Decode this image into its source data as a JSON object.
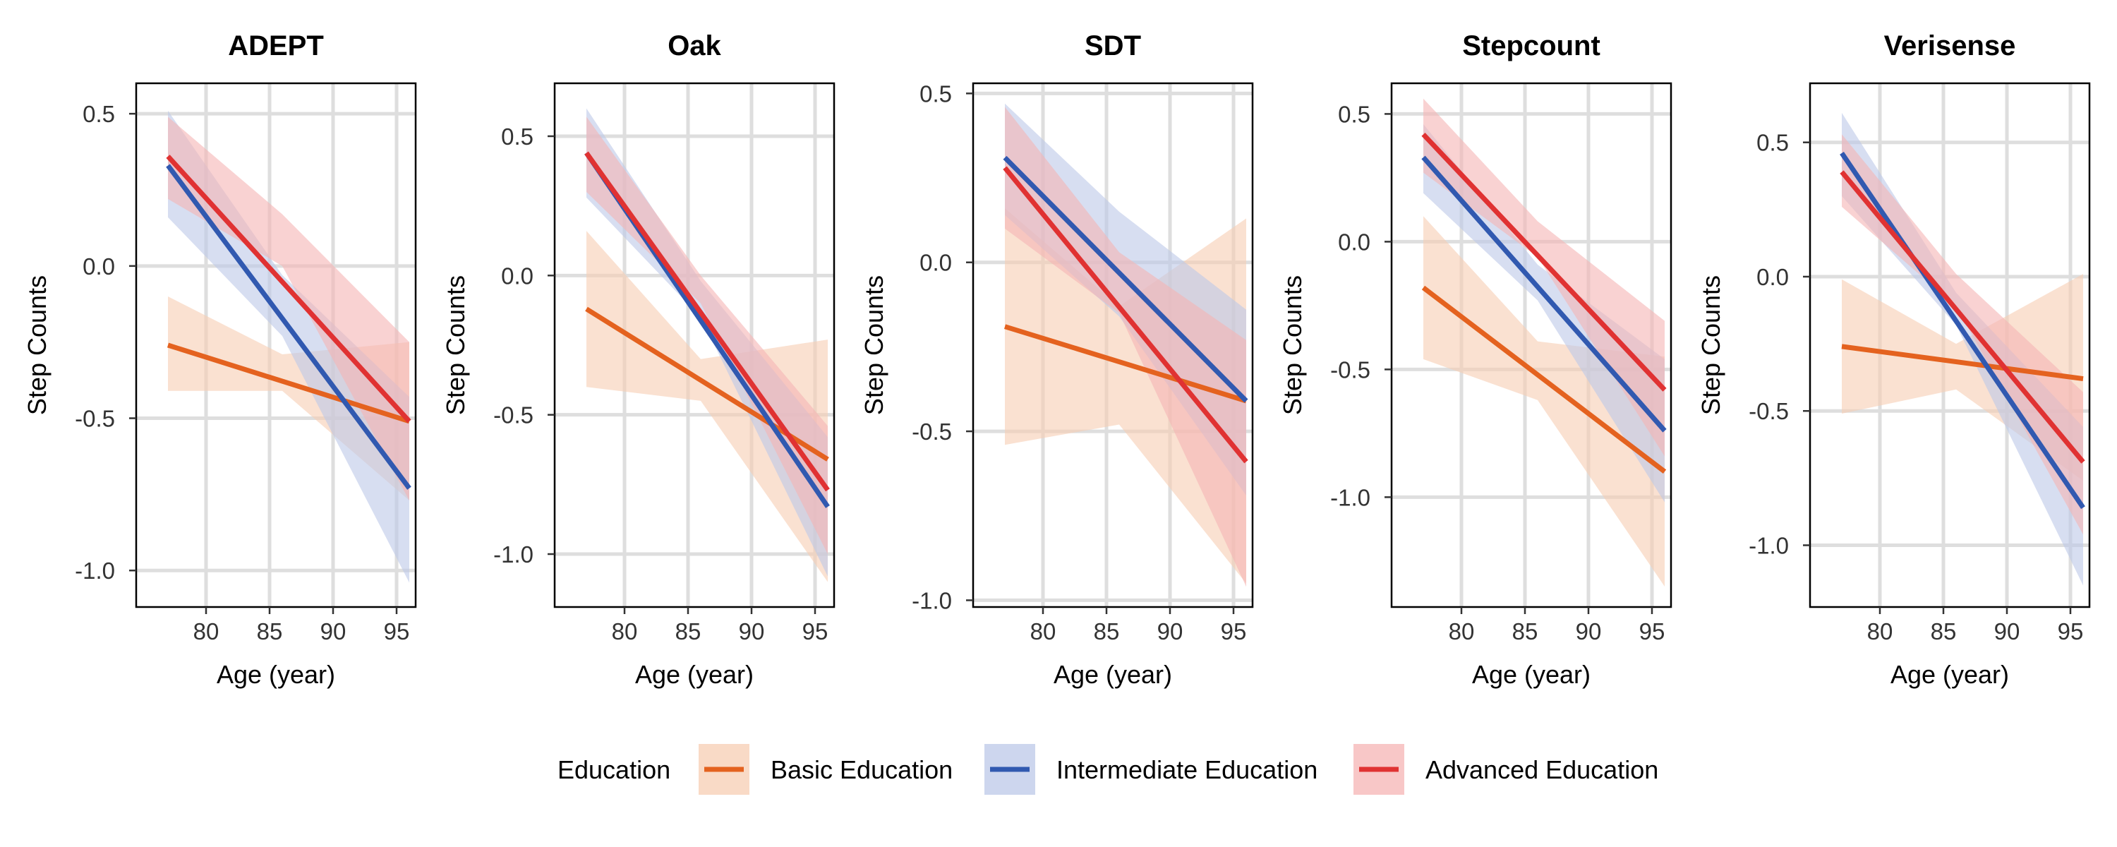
{
  "chart_data": {
    "type": "line",
    "x_label": "Age (year)",
    "y_label": "Step Counts",
    "x_ticks": [
      80,
      85,
      90,
      95
    ],
    "xlim": [
      74.5,
      96.5
    ],
    "legend": {
      "title": "Education",
      "position": "bottom",
      "entries": [
        {
          "name": "Basic Education",
          "key": "basic"
        },
        {
          "name": "Intermediate Education",
          "key": "intermediate"
        },
        {
          "name": "Advanced Education",
          "key": "advanced"
        }
      ]
    },
    "colors": {
      "basic": {
        "line": "#e4621f",
        "band": "#f7cdb3"
      },
      "intermediate": {
        "line": "#3159b0",
        "band": "#bcc8e8"
      },
      "advanced": {
        "line": "#e03232",
        "band": "#f5b4b4"
      }
    },
    "panels": [
      {
        "title": "ADEPT",
        "ylim": [
          -1.12,
          0.6
        ],
        "y_ticks": [
          0.5,
          0.0,
          -0.5,
          -1.0
        ],
        "y_tick_labels": [
          "0.5",
          "0.0",
          "-0.5",
          "-1.0"
        ],
        "series": {
          "basic": {
            "x": [
              77,
              96
            ],
            "y": [
              -0.26,
              -0.51
            ],
            "lower": [
              [
                77,
                -0.41
              ],
              [
                86,
                -0.41
              ],
              [
                96,
                -0.77
              ]
            ],
            "upper": [
              [
                77,
                -0.1
              ],
              [
                86,
                -0.29
              ],
              [
                96,
                -0.25
              ]
            ]
          },
          "intermediate": {
            "x": [
              77,
              96
            ],
            "y": [
              0.33,
              -0.73
            ],
            "lower": [
              [
                77,
                0.16
              ],
              [
                86,
                -0.23
              ],
              [
                96,
                -1.04
              ]
            ],
            "upper": [
              [
                77,
                0.51
              ],
              [
                86,
                -0.03
              ],
              [
                96,
                -0.43
              ]
            ]
          },
          "advanced": {
            "x": [
              77,
              96
            ],
            "y": [
              0.36,
              -0.51
            ],
            "lower": [
              [
                77,
                0.22
              ],
              [
                86,
                0.0
              ],
              [
                96,
                -0.77
              ]
            ],
            "upper": [
              [
                77,
                0.49
              ],
              [
                86,
                0.17
              ],
              [
                96,
                -0.25
              ]
            ]
          }
        }
      },
      {
        "title": "Oak",
        "ylim": [
          -1.19,
          0.69
        ],
        "y_ticks": [
          0.5,
          0.0,
          -0.5,
          -1.0
        ],
        "y_tick_labels": [
          "0.5",
          "0.0",
          "-0.5",
          "-1.0"
        ],
        "series": {
          "basic": {
            "x": [
              77,
              96
            ],
            "y": [
              -0.12,
              -0.66
            ],
            "lower": [
              [
                77,
                -0.4
              ],
              [
                86,
                -0.45
              ],
              [
                96,
                -1.1
              ]
            ],
            "upper": [
              [
                77,
                0.16
              ],
              [
                86,
                -0.3
              ],
              [
                96,
                -0.23
              ]
            ]
          },
          "intermediate": {
            "x": [
              77,
              96
            ],
            "y": [
              0.44,
              -0.83
            ],
            "lower": [
              [
                77,
                0.28
              ],
              [
                86,
                -0.15
              ],
              [
                96,
                -1.08
              ]
            ],
            "upper": [
              [
                77,
                0.6
              ],
              [
                86,
                -0.02
              ],
              [
                96,
                -0.58
              ]
            ]
          },
          "advanced": {
            "x": [
              77,
              96
            ],
            "y": [
              0.44,
              -0.77
            ],
            "lower": [
              [
                77,
                0.3
              ],
              [
                86,
                -0.1
              ],
              [
                96,
                -1.0
              ]
            ],
            "upper": [
              [
                77,
                0.57
              ],
              [
                86,
                0.0
              ],
              [
                96,
                -0.54
              ]
            ]
          }
        }
      },
      {
        "title": "SDT",
        "ylim": [
          -1.02,
          0.53
        ],
        "y_ticks": [
          0.5,
          0.0,
          -0.5,
          -1.0
        ],
        "y_tick_labels": [
          "0.5",
          "0.0",
          "-0.5",
          "-1.0"
        ],
        "series": {
          "basic": {
            "x": [
              77,
              96
            ],
            "y": [
              -0.19,
              -0.41
            ],
            "lower": [
              [
                77,
                -0.54
              ],
              [
                86,
                -0.48
              ],
              [
                96,
                -0.95
              ]
            ],
            "upper": [
              [
                77,
                0.16
              ],
              [
                86,
                -0.13
              ],
              [
                96,
                0.13
              ]
            ]
          },
          "intermediate": {
            "x": [
              77,
              96
            ],
            "y": [
              0.31,
              -0.41
            ],
            "lower": [
              [
                77,
                0.14
              ],
              [
                86,
                -0.16
              ],
              [
                96,
                -0.69
              ]
            ],
            "upper": [
              [
                77,
                0.47
              ],
              [
                86,
                0.15
              ],
              [
                96,
                -0.14
              ]
            ]
          },
          "advanced": {
            "x": [
              77,
              96
            ],
            "y": [
              0.28,
              -0.59
            ],
            "lower": [
              [
                77,
                0.1
              ],
              [
                86,
                -0.15
              ],
              [
                96,
                -0.96
              ]
            ],
            "upper": [
              [
                77,
                0.46
              ],
              [
                86,
                0.03
              ],
              [
                96,
                -0.23
              ]
            ]
          }
        }
      },
      {
        "title": "Stepcount",
        "ylim": [
          -1.43,
          0.62
        ],
        "y_ticks": [
          0.5,
          0.0,
          -0.5,
          -1.0
        ],
        "y_tick_labels": [
          "0.5",
          "0.0",
          "-0.5",
          "-1.0"
        ],
        "series": {
          "basic": {
            "x": [
              77,
              96
            ],
            "y": [
              -0.18,
              -0.9
            ],
            "lower": [
              [
                77,
                -0.46
              ],
              [
                86,
                -0.62
              ],
              [
                96,
                -1.35
              ]
            ],
            "upper": [
              [
                77,
                0.1
              ],
              [
                86,
                -0.39
              ],
              [
                96,
                -0.45
              ]
            ]
          },
          "intermediate": {
            "x": [
              77,
              96
            ],
            "y": [
              0.33,
              -0.74
            ],
            "lower": [
              [
                77,
                0.19
              ],
              [
                86,
                -0.23
              ],
              [
                96,
                -1.02
              ]
            ],
            "upper": [
              [
                77,
                0.46
              ],
              [
                86,
                -0.09
              ],
              [
                96,
                -0.46
              ]
            ]
          },
          "advanced": {
            "x": [
              77,
              96
            ],
            "y": [
              0.42,
              -0.58
            ],
            "lower": [
              [
                77,
                0.27
              ],
              [
                86,
                -0.06
              ],
              [
                96,
                -0.84
              ]
            ],
            "upper": [
              [
                77,
                0.56
              ],
              [
                86,
                0.08
              ],
              [
                96,
                -0.31
              ]
            ]
          }
        }
      },
      {
        "title": "Verisense",
        "ylim": [
          -1.23,
          0.72
        ],
        "y_ticks": [
          0.5,
          0.0,
          -0.5,
          -1.0
        ],
        "y_tick_labels": [
          "0.5",
          "0.0",
          "-0.5",
          "-1.0"
        ],
        "series": {
          "basic": {
            "x": [
              77,
              96
            ],
            "y": [
              -0.26,
              -0.38
            ],
            "lower": [
              [
                77,
                -0.51
              ],
              [
                86,
                -0.42
              ],
              [
                96,
                -0.76
              ]
            ],
            "upper": [
              [
                77,
                -0.01
              ],
              [
                86,
                -0.25
              ],
              [
                96,
                0.01
              ]
            ]
          },
          "intermediate": {
            "x": [
              77,
              96
            ],
            "y": [
              0.46,
              -0.86
            ],
            "lower": [
              [
                77,
                0.3
              ],
              [
                86,
                -0.18
              ],
              [
                96,
                -1.15
              ]
            ],
            "upper": [
              [
                77,
                0.61
              ],
              [
                86,
                -0.06
              ],
              [
                96,
                -0.56
              ]
            ]
          },
          "advanced": {
            "x": [
              77,
              96
            ],
            "y": [
              0.39,
              -0.69
            ],
            "lower": [
              [
                77,
                0.26
              ],
              [
                86,
                -0.11
              ],
              [
                96,
                -0.96
              ]
            ],
            "upper": [
              [
                77,
                0.53
              ],
              [
                86,
                0.01
              ],
              [
                96,
                -0.43
              ]
            ]
          }
        }
      }
    ]
  }
}
